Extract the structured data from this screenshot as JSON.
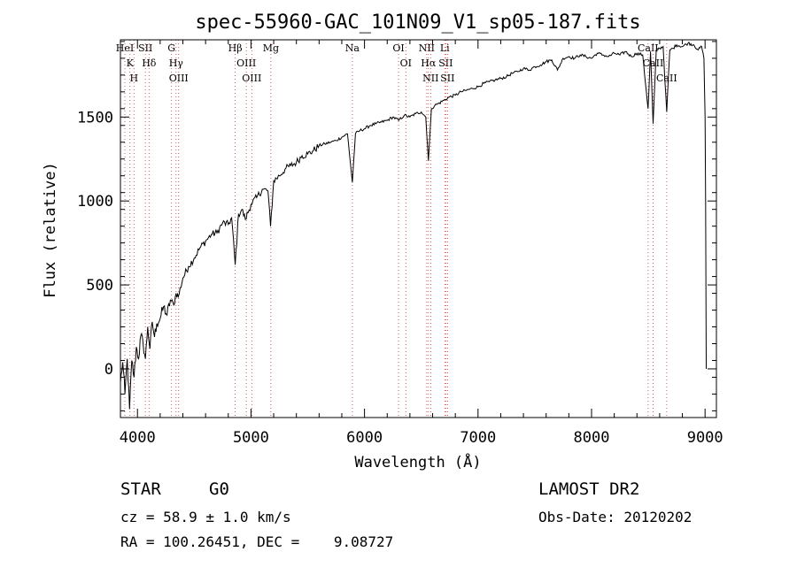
{
  "chart_data": {
    "type": "line",
    "title": "spec-55960-GAC_101N09_V1_sp05-187.fits",
    "xlabel": "Wavelength (Å)",
    "ylabel": "Flux (relative)",
    "xlim": [
      3850,
      9100
    ],
    "ylim": [
      -290,
      1960
    ],
    "xticks": [
      4000,
      5000,
      6000,
      7000,
      8000,
      9000
    ],
    "yticks": [
      0,
      500,
      1000,
      1500
    ],
    "grid": false,
    "line_color": "#000000",
    "marker_color": "#cc3333",
    "series": [
      {
        "x": [
          3850,
          3870,
          3890,
          3910,
          3930,
          3950,
          3970,
          3990,
          4010,
          4030,
          4050,
          4070,
          4090,
          4110,
          4130,
          4150,
          4170,
          4200,
          4230,
          4260,
          4290,
          4320,
          4340,
          4360,
          4400,
          4450,
          4500,
          4550,
          4600,
          4650,
          4700,
          4750,
          4800,
          4830,
          4861,
          4890,
          4920,
          4950,
          5000,
          5050,
          5100,
          5150,
          5172,
          5200,
          5250,
          5300,
          5350,
          5400,
          5450,
          5500,
          5550,
          5600,
          5650,
          5700,
          5750,
          5800,
          5850,
          5893,
          5920,
          5960,
          6000,
          6050,
          6100,
          6150,
          6200,
          6250,
          6300,
          6350,
          6400,
          6450,
          6500,
          6540,
          6563,
          6590,
          6620,
          6650,
          6700,
          6750,
          6800,
          6850,
          6900,
          6950,
          7000,
          7050,
          7100,
          7150,
          7200,
          7250,
          7300,
          7350,
          7400,
          7450,
          7500,
          7550,
          7600,
          7650,
          7700,
          7750,
          7800,
          7850,
          7900,
          7950,
          8000,
          8050,
          8100,
          8150,
          8200,
          8250,
          8300,
          8350,
          8400,
          8450,
          8498,
          8520,
          8542,
          8570,
          8600,
          8630,
          8662,
          8690,
          8720,
          8750,
          8800,
          8850,
          8900,
          8940,
          8970,
          8990,
          9000,
          9005,
          9010
        ],
        "y": [
          -80,
          40,
          -150,
          60,
          -240,
          50,
          -50,
          130,
          60,
          200,
          150,
          60,
          250,
          120,
          280,
          190,
          270,
          300,
          370,
          320,
          410,
          380,
          450,
          430,
          540,
          610,
          660,
          720,
          760,
          800,
          810,
          870,
          860,
          900,
          620,
          920,
          950,
          890,
          980,
          1020,
          1070,
          1060,
          850,
          1120,
          1150,
          1190,
          1210,
          1230,
          1270,
          1280,
          1300,
          1330,
          1340,
          1350,
          1360,
          1380,
          1400,
          1110,
          1400,
          1420,
          1430,
          1450,
          1460,
          1470,
          1480,
          1500,
          1480,
          1510,
          1500,
          1520,
          1530,
          1500,
          1240,
          1550,
          1570,
          1580,
          1600,
          1620,
          1630,
          1650,
          1660,
          1670,
          1680,
          1700,
          1710,
          1720,
          1730,
          1740,
          1760,
          1770,
          1790,
          1780,
          1800,
          1810,
          1830,
          1840,
          1780,
          1850,
          1860,
          1850,
          1870,
          1860,
          1850,
          1880,
          1870,
          1860,
          1880,
          1870,
          1890,
          1860,
          1880,
          1870,
          1550,
          1890,
          1460,
          1900,
          1910,
          1920,
          1530,
          1900,
          1910,
          1930,
          1920,
          1940,
          1930,
          1900,
          1920,
          1850,
          1500,
          1000,
          0
        ]
      }
    ],
    "line_markers": [
      {
        "x": 3889,
        "labels": [
          "HeI"
        ]
      },
      {
        "x": 3934,
        "labels": [
          "K"
        ]
      },
      {
        "x": 3969,
        "labels": [
          "H"
        ]
      },
      {
        "x": 4070,
        "labels": [
          "SII"
        ]
      },
      {
        "x": 4102,
        "labels": [
          "Hδ"
        ]
      },
      {
        "x": 4300,
        "labels": [
          "G"
        ]
      },
      {
        "x": 4340,
        "labels": [
          "Hγ"
        ]
      },
      {
        "x": 4363,
        "labels": [
          "OIII"
        ]
      },
      {
        "x": 4861,
        "labels": [
          "Hβ"
        ]
      },
      {
        "x": 4959,
        "labels": [
          "OIII"
        ]
      },
      {
        "x": 5007,
        "labels": [
          "OIII"
        ]
      },
      {
        "x": 5175,
        "labels": [
          "Mg"
        ]
      },
      {
        "x": 5893,
        "labels": [
          "Na"
        ]
      },
      {
        "x": 6300,
        "labels": [
          "OI"
        ]
      },
      {
        "x": 6364,
        "labels": [
          "OI"
        ]
      },
      {
        "x": 6548,
        "labels": [
          "NII"
        ]
      },
      {
        "x": 6563,
        "labels": [
          "Hα"
        ]
      },
      {
        "x": 6583,
        "labels": [
          "NII"
        ]
      },
      {
        "x": 6707,
        "labels": [
          "Li"
        ]
      },
      {
        "x": 6716,
        "labels": [
          "SII"
        ]
      },
      {
        "x": 6731,
        "labels": [
          "SII"
        ]
      },
      {
        "x": 8498,
        "labels": [
          "CaII"
        ]
      },
      {
        "x": 8542,
        "labels": [
          "CaII"
        ]
      },
      {
        "x": 8662,
        "labels": [
          "CaII"
        ]
      }
    ]
  },
  "info": {
    "class": "STAR",
    "subclass": "G0",
    "survey": "LAMOST DR2",
    "cz": "cz = 58.9 ± 1.0 km/s",
    "obsdate": "Obs-Date: 20120202",
    "coords": "RA = 100.26451, DEC =    9.08727"
  }
}
